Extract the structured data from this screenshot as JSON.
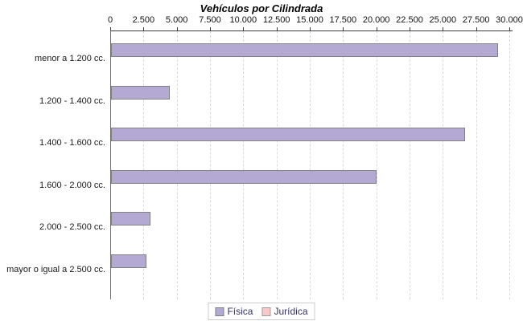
{
  "chart_data": {
    "type": "bar",
    "orientation": "horizontal",
    "title": "Vehículos por Cilindrada",
    "categories": [
      "menor a 1.200 cc.",
      "1.200 - 1.400 cc.",
      "1.400 - 1.600 cc.",
      "1.600 - 2.000 cc.",
      "2.000 - 2.500 cc.",
      "mayor o igual a 2.500 cc."
    ],
    "series": [
      {
        "name": "Física",
        "color": "#b3a9d2",
        "border_color": "#808080",
        "values": [
          29100,
          4400,
          26600,
          19950,
          2950,
          2650
        ]
      },
      {
        "name": "Jurídica",
        "color": "#f9c9ca",
        "border_color": "#9c9c9c",
        "values": [
          0,
          0,
          0,
          0,
          0,
          0
        ]
      }
    ],
    "value_axis": {
      "position": "top",
      "min": 0,
      "max": 30000,
      "tick_interval": 2500,
      "tick_labels": [
        "0",
        "2.500",
        "5.000",
        "7.500",
        "10.000",
        "12.500",
        "15.000",
        "17.500",
        "20.000",
        "22.500",
        "25.000",
        "27.500",
        "30.000"
      ]
    },
    "grid": "vertical-dashed",
    "legend_position": "bottom"
  }
}
